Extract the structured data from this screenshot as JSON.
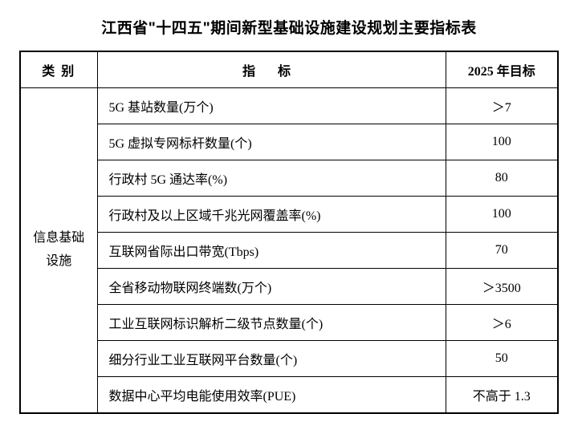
{
  "title": "江西省\"十四五\"期间新型基础设施建设规划主要指标表",
  "headers": {
    "category": "类 别",
    "indicator": "指 标",
    "target": "2025 年目标"
  },
  "category": "信息基础设施",
  "rows": [
    {
      "indicator": "5G 基站数量(万个)",
      "target": "＞7"
    },
    {
      "indicator": "5G 虚拟专网标杆数量(个)",
      "target": "100"
    },
    {
      "indicator": "行政村 5G 通达率(%)",
      "target": "80"
    },
    {
      "indicator": "行政村及以上区域千兆光网覆盖率(%)",
      "target": "100"
    },
    {
      "indicator": "互联网省际出口带宽(Tbps)",
      "target": "70"
    },
    {
      "indicator": "全省移动物联网终端数(万个)",
      "target": "＞3500"
    },
    {
      "indicator": "工业互联网标识解析二级节点数量(个)",
      "target": "＞6"
    },
    {
      "indicator": "细分行业工业互联网平台数量(个)",
      "target": "50"
    },
    {
      "indicator": "数据中心平均电能使用效率(PUE)",
      "target": "不高于 1.3"
    }
  ],
  "style": {
    "title_fontsize": 19,
    "cell_fontsize": 16,
    "border_color": "#000000",
    "background_color": "#ffffff",
    "category_col_width": 96,
    "target_col_width": 140
  }
}
